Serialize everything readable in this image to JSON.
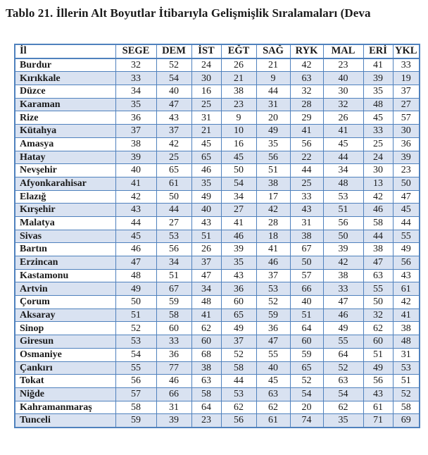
{
  "title": "Tablo 21. İllerin Alt Boyutlar İtibarıyla Gelişmişlik Sıralamaları (Deva",
  "colors": {
    "table_border": "#4F81BD",
    "row_shade": "#D9E2F1",
    "text": "#1a1a1a",
    "background": "#ffffff"
  },
  "chart_data": {
    "type": "table",
    "columns": [
      "İl",
      "SEGE",
      "DEM",
      "İST",
      "EĞT",
      "SAĞ",
      "RYK",
      "MAL",
      "ERİ",
      "YKL"
    ],
    "rows": [
      {
        "name": "Burdur",
        "ranks": [
          32,
          52,
          24,
          26,
          21,
          42,
          23,
          41,
          33
        ]
      },
      {
        "name": "Kırıkkale",
        "ranks": [
          33,
          54,
          30,
          21,
          9,
          63,
          40,
          39,
          19
        ]
      },
      {
        "name": "Düzce",
        "ranks": [
          34,
          40,
          16,
          38,
          44,
          32,
          30,
          35,
          37
        ]
      },
      {
        "name": "Karaman",
        "ranks": [
          35,
          47,
          25,
          23,
          31,
          28,
          32,
          48,
          27
        ]
      },
      {
        "name": "Rize",
        "ranks": [
          36,
          43,
          31,
          9,
          20,
          29,
          26,
          45,
          57
        ]
      },
      {
        "name": "Kütahya",
        "ranks": [
          37,
          37,
          21,
          10,
          49,
          41,
          41,
          33,
          30
        ]
      },
      {
        "name": "Amasya",
        "ranks": [
          38,
          42,
          45,
          16,
          35,
          56,
          45,
          25,
          36
        ]
      },
      {
        "name": "Hatay",
        "ranks": [
          39,
          25,
          65,
          45,
          56,
          22,
          44,
          24,
          39
        ]
      },
      {
        "name": "Nevşehir",
        "ranks": [
          40,
          65,
          46,
          50,
          51,
          44,
          34,
          30,
          23
        ]
      },
      {
        "name": "Afyonkarahisar",
        "ranks": [
          41,
          61,
          35,
          54,
          38,
          25,
          48,
          13,
          50
        ]
      },
      {
        "name": "Elazığ",
        "ranks": [
          42,
          50,
          49,
          34,
          17,
          33,
          53,
          42,
          47
        ]
      },
      {
        "name": "Kırşehir",
        "ranks": [
          43,
          44,
          40,
          27,
          42,
          43,
          51,
          46,
          45
        ]
      },
      {
        "name": "Malatya",
        "ranks": [
          44,
          27,
          43,
          41,
          28,
          31,
          56,
          58,
          44
        ]
      },
      {
        "name": "Sivas",
        "ranks": [
          45,
          53,
          51,
          46,
          18,
          38,
          50,
          44,
          55
        ]
      },
      {
        "name": "Bartın",
        "ranks": [
          46,
          56,
          26,
          39,
          41,
          67,
          39,
          38,
          49
        ]
      },
      {
        "name": "Erzincan",
        "ranks": [
          47,
          34,
          37,
          35,
          46,
          50,
          42,
          47,
          56
        ]
      },
      {
        "name": "Kastamonu",
        "ranks": [
          48,
          51,
          47,
          43,
          37,
          57,
          38,
          63,
          43
        ]
      },
      {
        "name": "Artvin",
        "ranks": [
          49,
          67,
          34,
          36,
          53,
          66,
          33,
          55,
          61
        ]
      },
      {
        "name": "Çorum",
        "ranks": [
          50,
          59,
          48,
          60,
          52,
          40,
          47,
          50,
          42
        ]
      },
      {
        "name": "Aksaray",
        "ranks": [
          51,
          58,
          41,
          65,
          59,
          51,
          46,
          32,
          41
        ]
      },
      {
        "name": "Sinop",
        "ranks": [
          52,
          60,
          62,
          49,
          36,
          64,
          49,
          62,
          38
        ]
      },
      {
        "name": "Giresun",
        "ranks": [
          53,
          33,
          60,
          37,
          47,
          60,
          55,
          60,
          48
        ]
      },
      {
        "name": "Osmaniye",
        "ranks": [
          54,
          36,
          68,
          52,
          55,
          59,
          64,
          51,
          31
        ]
      },
      {
        "name": "Çankırı",
        "ranks": [
          55,
          77,
          38,
          58,
          40,
          65,
          52,
          49,
          53
        ]
      },
      {
        "name": "Tokat",
        "ranks": [
          56,
          46,
          63,
          44,
          45,
          52,
          63,
          56,
          51
        ]
      },
      {
        "name": "Niğde",
        "ranks": [
          57,
          66,
          58,
          53,
          63,
          54,
          54,
          43,
          52
        ]
      },
      {
        "name": "Kahramanmaraş",
        "ranks": [
          58,
          31,
          64,
          62,
          62,
          20,
          62,
          61,
          58
        ]
      },
      {
        "name": "Tunceli",
        "ranks": [
          59,
          39,
          23,
          56,
          61,
          74,
          35,
          71,
          69
        ]
      }
    ]
  }
}
